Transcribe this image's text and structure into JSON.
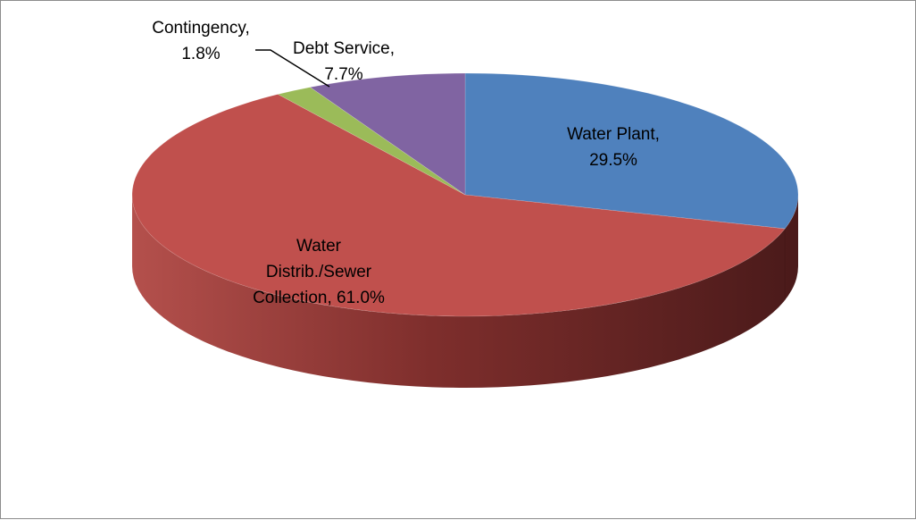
{
  "chart_data": {
    "type": "pie",
    "title": "",
    "style": "3d",
    "legend": "none",
    "series": [
      {
        "categories": [
          "Water Plant",
          "Water Distrib./Sewer Collection",
          "Contingency",
          "Debt Service"
        ],
        "values": [
          29.5,
          61.0,
          1.8,
          7.7
        ],
        "colors": [
          "#4f81bd",
          "#c0504d",
          "#9bbb59",
          "#8064a2"
        ]
      }
    ],
    "labels": [
      {
        "lines": [
          "Water Plant,",
          "29.5%"
        ]
      },
      {
        "lines": [
          "Water",
          "Distrib./Sewer",
          "Collection, 61.0%"
        ]
      },
      {
        "lines": [
          "Contingency,",
          "1.8%"
        ]
      },
      {
        "lines": [
          "Debt Service,",
          "7.7%"
        ]
      }
    ]
  }
}
